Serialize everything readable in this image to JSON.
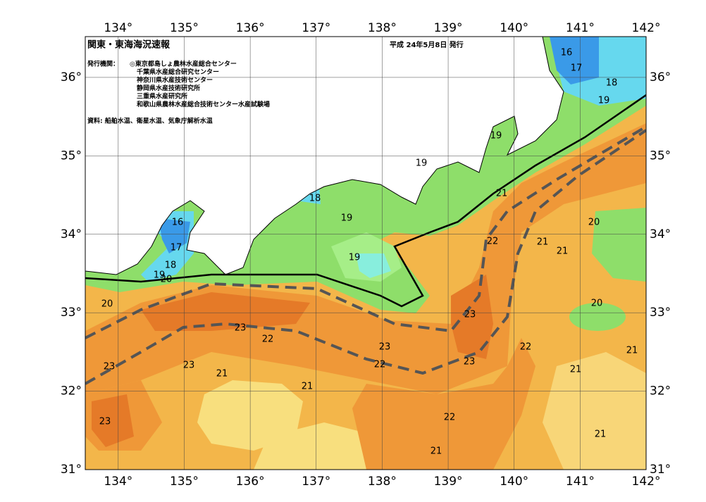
{
  "header": {
    "title": "関東・東海海況速報",
    "date": "平成 24年5月8日 発行",
    "issuer_label": "発行機関：",
    "issuers": [
      "◎東京都島しょ農林水産総合センター",
      "千葉県水産総合研究センター",
      "神奈川県水産技術センター",
      "静岡県水産技術研究所",
      "三重県水産研究所",
      "和歌山県農林水産総合技術センター水産試験場"
    ],
    "sources": "資料: 船舶水温、衛星水温、気象庁解析水温"
  },
  "map": {
    "lon_range": [
      133.5,
      142
    ],
    "lat_range": [
      31,
      36.52
    ],
    "lon_ticks": [
      {
        "value": 134,
        "label": "134°"
      },
      {
        "value": 135,
        "label": "135°"
      },
      {
        "value": 136,
        "label": "136°"
      },
      {
        "value": 137,
        "label": "137°"
      },
      {
        "value": 138,
        "label": "138°"
      },
      {
        "value": 139,
        "label": "139°"
      },
      {
        "value": 140,
        "label": "140°"
      },
      {
        "value": 141,
        "label": "141°"
      },
      {
        "value": 142,
        "label": "142°"
      }
    ],
    "lat_ticks": [
      {
        "value": 31,
        "label": "31°"
      },
      {
        "value": 32,
        "label": "32°"
      },
      {
        "value": 33,
        "label": "33°"
      },
      {
        "value": 34,
        "label": "34°"
      },
      {
        "value": 35,
        "label": "35°"
      },
      {
        "value": 36,
        "label": "36°"
      }
    ],
    "contour_labels": [
      16,
      17,
      18,
      19,
      19,
      19,
      21,
      18,
      19,
      16,
      17,
      18,
      19,
      20,
      20,
      19,
      22,
      21,
      21,
      20,
      20,
      23,
      23,
      22,
      23,
      22,
      21,
      22,
      23,
      23,
      23,
      21,
      21,
      21,
      21,
      22,
      21,
      23
    ]
  }
}
